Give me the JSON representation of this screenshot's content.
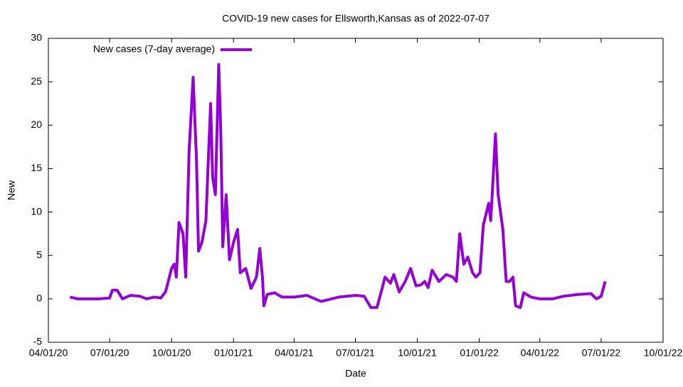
{
  "chart_data": {
    "type": "line",
    "title": "COVID-19 new cases for Ellsworth,Kansas as of 2022-07-07",
    "x_label": "Date",
    "y_label": "New",
    "x": [
      "2020-05-03",
      "2020-05-15",
      "2020-06-01",
      "2020-06-15",
      "2020-07-01",
      "2020-07-05",
      "2020-07-12",
      "2020-07-20",
      "2020-08-01",
      "2020-08-15",
      "2020-08-25",
      "2020-09-05",
      "2020-09-15",
      "2020-09-22",
      "2020-10-01",
      "2020-10-05",
      "2020-10-08",
      "2020-10-12",
      "2020-10-18",
      "2020-10-22",
      "2020-10-27",
      "2020-11-02",
      "2020-11-07",
      "2020-11-10",
      "2020-11-15",
      "2020-11-21",
      "2020-11-24",
      "2020-11-28",
      "2020-12-01",
      "2020-12-05",
      "2020-12-10",
      "2020-12-13",
      "2020-12-16",
      "2020-12-21",
      "2020-12-26",
      "2021-01-01",
      "2021-01-07",
      "2021-01-11",
      "2021-01-19",
      "2021-01-27",
      "2021-02-04",
      "2021-02-09",
      "2021-02-13",
      "2021-02-15",
      "2021-02-20",
      "2021-03-03",
      "2021-03-14",
      "2021-04-01",
      "2021-04-20",
      "2021-05-11",
      "2021-06-06",
      "2021-07-01",
      "2021-07-14",
      "2021-07-24",
      "2021-08-02",
      "2021-08-09",
      "2021-08-14",
      "2021-08-22",
      "2021-08-27",
      "2021-09-04",
      "2021-09-13",
      "2021-09-21",
      "2021-09-29",
      "2021-10-06",
      "2021-10-12",
      "2021-10-17",
      "2021-10-23",
      "2021-11-02",
      "2021-11-13",
      "2021-11-23",
      "2021-11-28",
      "2021-12-03",
      "2021-12-09",
      "2021-12-15",
      "2021-12-22",
      "2021-12-27",
      "2022-01-02",
      "2022-01-07",
      "2022-01-15",
      "2022-01-18",
      "2022-01-22",
      "2022-01-25",
      "2022-01-29",
      "2022-02-05",
      "2022-02-10",
      "2022-02-15",
      "2022-02-20",
      "2022-02-24",
      "2022-03-03",
      "2022-03-08",
      "2022-03-19",
      "2022-04-01",
      "2022-04-20",
      "2022-05-06",
      "2022-05-27",
      "2022-06-16",
      "2022-06-24",
      "2022-07-01",
      "2022-07-07"
    ],
    "series": [
      {
        "name": "New cases (7-day average)",
        "color": "#9400d3",
        "values": [
          0.2,
          0,
          0,
          0,
          0.1,
          1,
          1,
          0,
          0.4,
          0.3,
          0,
          0.2,
          0.1,
          0.8,
          3.5,
          4,
          2.5,
          8.8,
          7.5,
          2.5,
          17,
          25.5,
          16,
          5.5,
          6.5,
          9,
          15,
          22.5,
          14,
          12,
          27,
          19.5,
          6,
          12,
          4.5,
          6.5,
          8,
          3,
          3.5,
          1.2,
          2.5,
          5.8,
          2.5,
          -0.8,
          0.5,
          0.7,
          0.2,
          0.2,
          0.4,
          -0.3,
          0.2,
          0.4,
          0.3,
          -1,
          -1,
          1,
          2.5,
          1.8,
          2.8,
          0.8,
          2,
          3.5,
          1.5,
          1.6,
          2,
          1.3,
          3.3,
          2,
          2.8,
          2.5,
          2,
          7.5,
          4,
          4.8,
          3,
          2.5,
          3,
          8.5,
          11,
          9,
          14.5,
          19,
          12,
          8,
          2,
          2,
          2.5,
          -0.8,
          -1,
          0.7,
          0.2,
          0,
          0,
          0.3,
          0.5,
          0.6,
          0,
          0.3,
          2
        ]
      }
    ],
    "xlim": [
      "2020-04-01",
      "2022-10-01"
    ],
    "xticks": [
      {
        "value": "2020-04-01",
        "label": "04/01/20"
      },
      {
        "value": "2020-07-01",
        "label": "07/01/20"
      },
      {
        "value": "2020-10-01",
        "label": "10/01/20"
      },
      {
        "value": "2021-01-01",
        "label": "01/01/21"
      },
      {
        "value": "2021-04-01",
        "label": "04/01/21"
      },
      {
        "value": "2021-07-01",
        "label": "07/01/21"
      },
      {
        "value": "2021-10-01",
        "label": "10/01/21"
      },
      {
        "value": "2022-01-01",
        "label": "01/01/22"
      },
      {
        "value": "2022-04-01",
        "label": "04/01/22"
      },
      {
        "value": "2022-07-01",
        "label": "07/01/22"
      },
      {
        "value": "2022-10-01",
        "label": "10/01/22"
      }
    ],
    "ylim": [
      -5,
      30
    ],
    "yticks": [
      -5,
      0,
      5,
      10,
      15,
      20,
      25,
      30
    ],
    "legend": "top-left"
  }
}
